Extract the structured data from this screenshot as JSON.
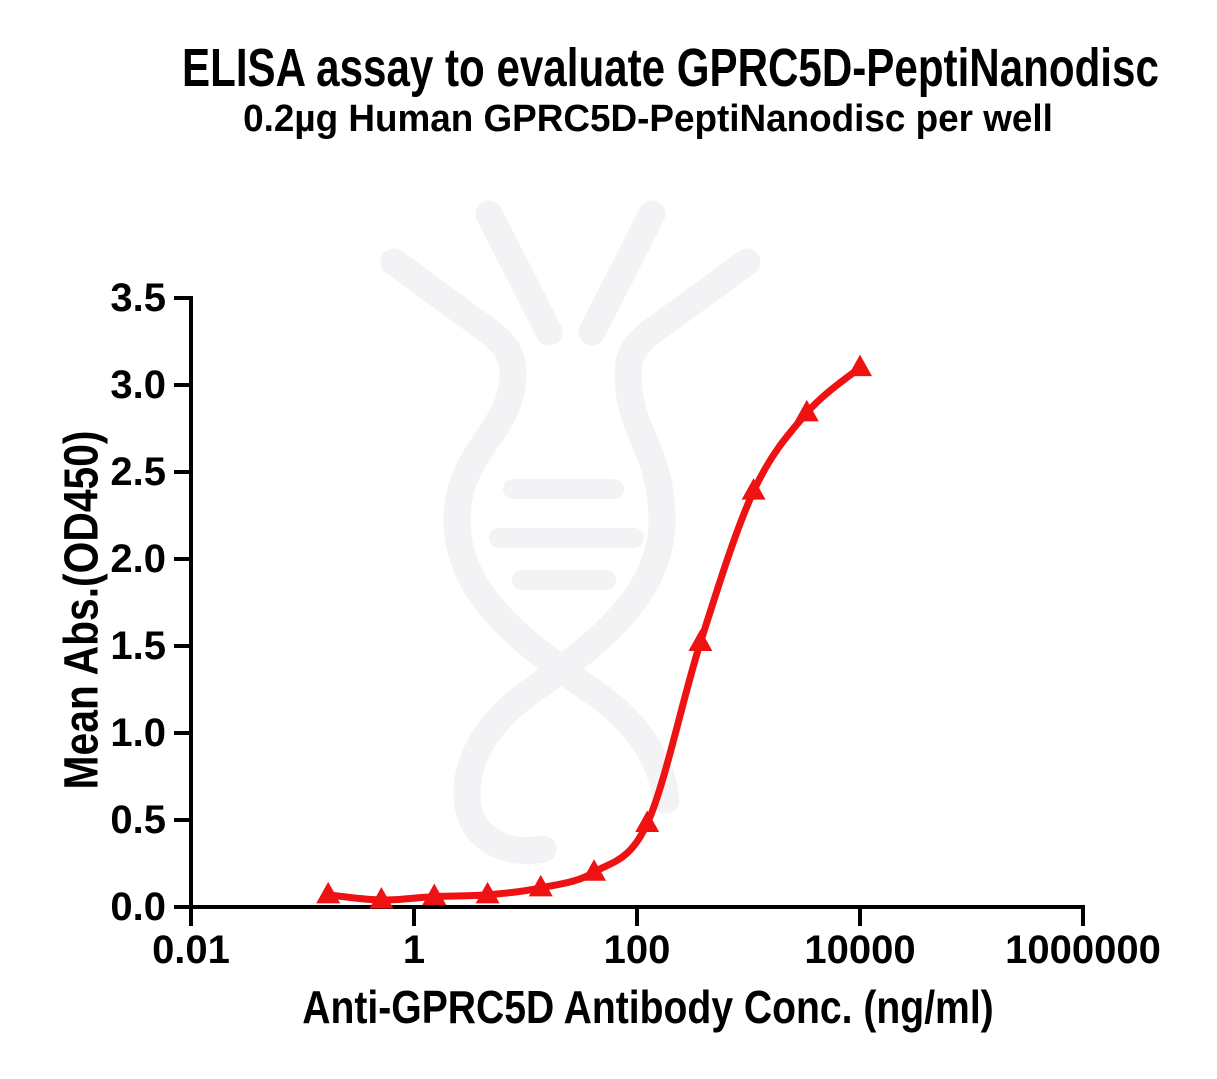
{
  "page": {
    "background": "#ffffff"
  },
  "chart_data": {
    "type": "line",
    "title": "ELISA assay to evaluate GPRC5D-PeptiNanodisc",
    "subtitle": "0.2µg Human GPRC5D-PeptiNanodisc per well",
    "xlabel": "Anti-GPRC5D Antibody Conc. (ng/ml)",
    "ylabel": "Mean Abs.(OD450)",
    "x_scale": "log10",
    "xlim": [
      0.01,
      1000000
    ],
    "ylim": [
      0,
      3.5
    ],
    "grid": false,
    "legend": "none",
    "x_ticks": [
      {
        "value": 0.01,
        "label": "0.01"
      },
      {
        "value": 1,
        "label": "1"
      },
      {
        "value": 100,
        "label": "100"
      },
      {
        "value": 10000,
        "label": "10000"
      },
      {
        "value": 1000000,
        "label": "1000000"
      }
    ],
    "y_ticks": [
      {
        "value": 0.0,
        "label": "0.0"
      },
      {
        "value": 0.5,
        "label": "0.5"
      },
      {
        "value": 1.0,
        "label": "1.0"
      },
      {
        "value": 1.5,
        "label": "1.5"
      },
      {
        "value": 2.0,
        "label": "2.0"
      },
      {
        "value": 2.5,
        "label": "2.5"
      },
      {
        "value": 3.0,
        "label": "3.0"
      },
      {
        "value": 3.5,
        "label": "3.5"
      }
    ],
    "series": [
      {
        "name": "Human GPRC5D-PeptiNanodisc",
        "marker": "triangle-up",
        "line": "smooth",
        "color": "#ee1212",
        "x": [
          0.17,
          0.51,
          1.52,
          4.57,
          13.7,
          41.2,
          123.5,
          370.4,
          1111,
          3333,
          10000
        ],
        "y": [
          0.07,
          0.04,
          0.06,
          0.07,
          0.11,
          0.2,
          0.48,
          1.52,
          2.39,
          2.84,
          3.1
        ]
      }
    ]
  },
  "style": {
    "axis_color": "#000000",
    "text_color": "#000000",
    "series_color": "#ee1212",
    "watermark_color": "#f3f3f5"
  }
}
